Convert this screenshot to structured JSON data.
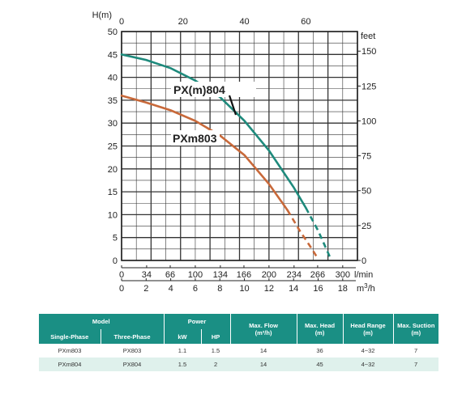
{
  "chart_data": {
    "type": "line",
    "y_left": {
      "label": "H(m)",
      "ticks": [
        0,
        5,
        10,
        15,
        20,
        25,
        30,
        35,
        40,
        45,
        50
      ],
      "range": [
        0,
        50
      ]
    },
    "y_right": {
      "label": "feet",
      "ticks": [
        0,
        25,
        50,
        75,
        100,
        125,
        150
      ],
      "range_feet": [
        0,
        164
      ]
    },
    "x_top": {
      "ticks": [
        0,
        20,
        40,
        60
      ],
      "range": [
        0,
        76.8
      ]
    },
    "x_lmin": {
      "label": "l/min",
      "ticks": [
        0,
        34,
        66,
        100,
        134,
        166,
        200,
        234,
        266,
        300
      ]
    },
    "x_m3h": {
      "label": "m³/h",
      "label_base": "m",
      "label_sup": "3",
      "label_tail": "/h",
      "ticks": [
        0,
        2,
        4,
        6,
        8,
        10,
        12,
        14,
        16,
        18
      ],
      "range": [
        0,
        19.2
      ]
    },
    "grid": true,
    "series": [
      {
        "name": "PX(m)804",
        "color": "#1e8a7c",
        "x": [
          0,
          2,
          4,
          6,
          8,
          10,
          12,
          14,
          15,
          16,
          16.5,
          17.0
        ],
        "y": [
          45,
          43.8,
          42.0,
          39.3,
          35.7,
          30.5,
          24.0,
          16.0,
          11.5,
          6.5,
          3.5,
          0.5
        ],
        "dashed_from_x": 15
      },
      {
        "name": "PXm803",
        "color": "#c8693a",
        "x": [
          0,
          2,
          4,
          6,
          8,
          10,
          12,
          13.5,
          14.5,
          15.5,
          16.0
        ],
        "y": [
          36,
          34.5,
          32.8,
          30.5,
          27.3,
          23.0,
          16.7,
          11.0,
          6.5,
          2.5,
          0.3
        ],
        "dashed_from_x": 13.5
      }
    ]
  },
  "table": {
    "group_headers": {
      "model": "Model",
      "power": "Power",
      "max_flow": [
        "Max. Flow",
        "(m³/h)"
      ],
      "max_head": [
        "Max. Head",
        "(m)"
      ],
      "head_range": [
        "Head Range",
        "(m)"
      ],
      "max_suction": [
        "Max. Suction",
        "(m)"
      ]
    },
    "sub_headers": {
      "single_phase": "Single-Phase",
      "three_phase": "Three-Phase",
      "kw": "kW",
      "hp": "HP"
    },
    "rows": [
      {
        "single": "PXm803",
        "three": "PX803",
        "kw": "1.1",
        "hp": "1.5",
        "flow": "14",
        "head": "36",
        "range": "4~32",
        "suction": "7"
      },
      {
        "single": "PXm804",
        "three": "PX804",
        "kw": "1.5",
        "hp": "2",
        "flow": "14",
        "head": "45",
        "range": "4~32",
        "suction": "7"
      }
    ]
  }
}
